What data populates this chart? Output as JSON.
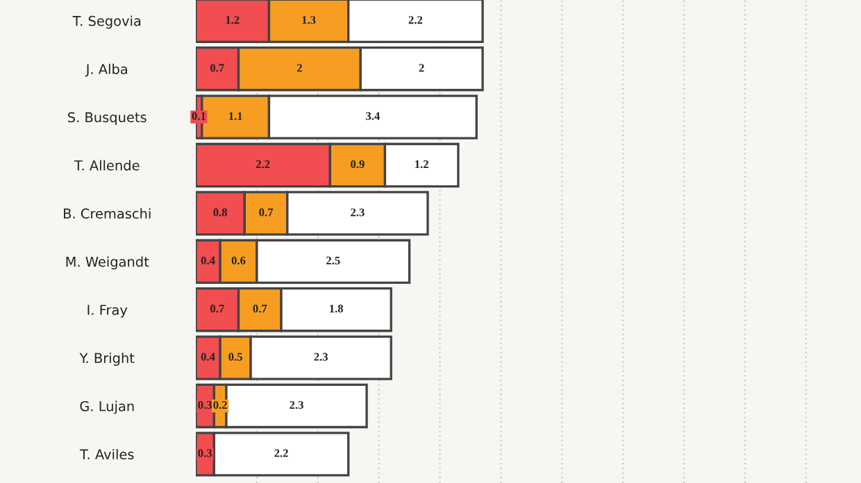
{
  "chart_data": {
    "type": "bar",
    "orientation": "horizontal",
    "stacked": true,
    "data_labels": true,
    "categories": [
      "T. Segovia",
      "J. Alba",
      "S. Busquets",
      "T. Allende",
      "B. Cremaschi",
      "M. Weigandt",
      "I. Fray",
      "Y. Bright",
      "G. Lujan",
      "T. Aviles"
    ],
    "series": [
      {
        "color": "#f24d51",
        "values": [
          1.2,
          0.7,
          0.1,
          2.2,
          0.8,
          0.4,
          0.7,
          0.4,
          0.3,
          0.3
        ]
      },
      {
        "color": "#f79e22",
        "values": [
          1.3,
          2,
          1.1,
          0.9,
          0.7,
          0.6,
          0.7,
          0.5,
          0.2,
          null
        ]
      },
      {
        "color": "#ffffff",
        "values": [
          2.2,
          2,
          3.4,
          1.2,
          2.3,
          2.5,
          1.8,
          2.3,
          2.3,
          2.2
        ]
      }
    ],
    "xlim": [
      0,
      10.9
    ],
    "xticks": [
      {
        "value": 1,
        "label": null
      },
      {
        "value": 2,
        "label": null
      },
      {
        "value": 3,
        "label": null
      },
      {
        "value": 4,
        "label": null
      },
      {
        "value": 5,
        "label": null
      },
      {
        "value": 6,
        "label": null
      },
      {
        "value": 7,
        "label": null
      },
      {
        "value": 8,
        "label": null
      },
      {
        "value": 9,
        "label": null
      },
      {
        "value": 10,
        "label": null
      }
    ],
    "grid": "x",
    "tick_labels": "y"
  }
}
